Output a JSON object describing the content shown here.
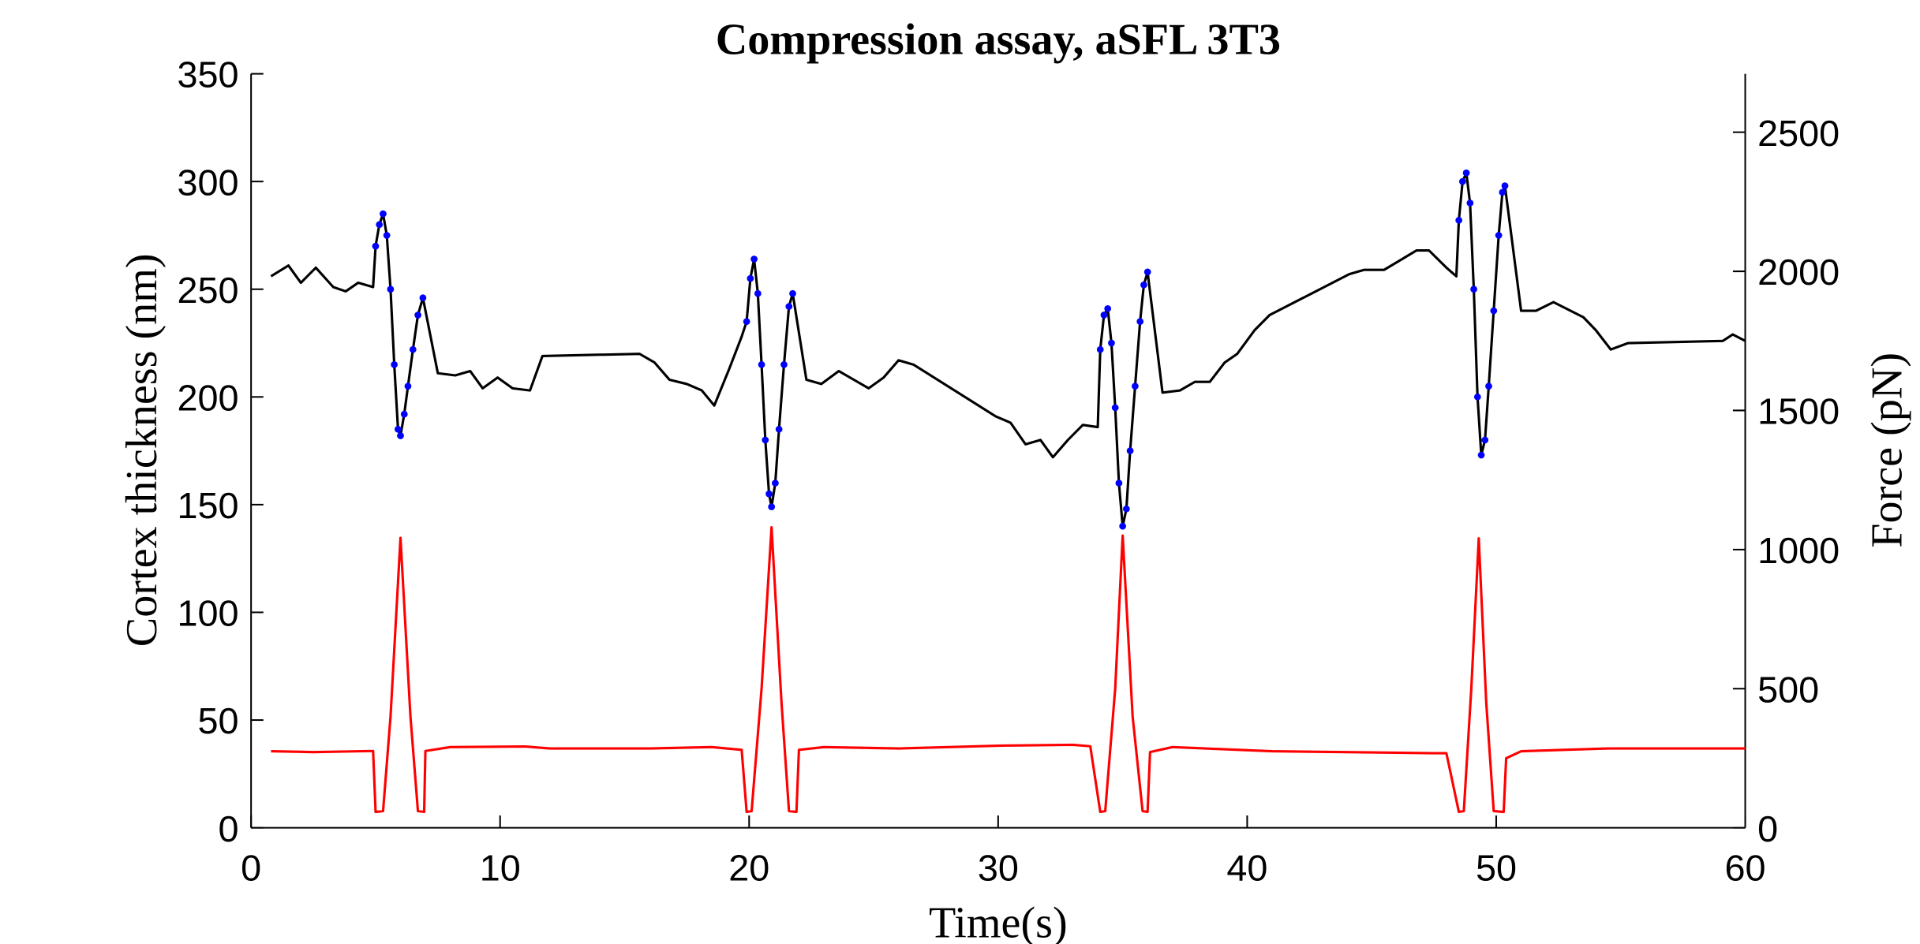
{
  "chart_data": {
    "type": "line",
    "title": "Compression assay, aSFL 3T3",
    "xlabel": "Time(s)",
    "ylabel": "Cortex thickness (nm)",
    "y2label": "Force (pN)",
    "xlim": [
      0,
      60
    ],
    "xticks": [
      0,
      10,
      20,
      30,
      40,
      50,
      60
    ],
    "ylim": [
      0,
      350
    ],
    "yticks": [
      0,
      50,
      100,
      150,
      200,
      250,
      300,
      350
    ],
    "y2lim": [
      0,
      2710
    ],
    "y2ticks": [
      0,
      500,
      1000,
      1500,
      2000,
      2500
    ],
    "series": [
      {
        "color": "#000000",
        "marker": false,
        "axis": "y",
        "x": [
          0.8,
          1.5,
          2.0,
          2.6,
          3.3,
          3.8,
          4.3,
          4.9,
          5.0,
          5.15,
          5.3,
          5.45,
          5.6,
          5.75,
          5.9,
          6.0,
          6.15,
          6.3,
          6.5,
          6.7,
          6.9,
          7.5,
          8.2,
          8.8,
          9.3,
          9.9,
          10.5,
          11.2,
          11.7,
          15.6,
          16.2,
          16.8,
          17.5,
          18.1,
          18.6,
          19.2,
          19.7,
          19.9,
          20.05,
          20.2,
          20.35,
          20.5,
          20.65,
          20.8,
          20.9,
          21.05,
          21.2,
          21.4,
          21.6,
          21.75,
          22.3,
          22.9,
          23.6,
          24.2,
          24.8,
          25.4,
          26.0,
          26.6,
          29.9,
          30.5,
          31.1,
          31.7,
          32.2,
          32.8,
          33.4,
          34.0,
          34.1,
          34.25,
          34.4,
          34.55,
          34.7,
          34.85,
          35.0,
          35.15,
          35.3,
          35.5,
          35.7,
          35.85,
          36.0,
          36.6,
          37.3,
          37.9,
          38.5,
          39.1,
          39.6,
          40.3,
          40.9,
          44.1,
          44.7,
          45.5,
          46.8,
          47.3,
          48.0,
          48.4,
          48.5,
          48.65,
          48.8,
          48.95,
          49.1,
          49.25,
          49.4,
          49.55,
          49.7,
          49.9,
          50.1,
          50.25,
          50.35,
          51.0,
          51.6,
          52.3,
          53.5,
          54.0,
          54.6,
          55.3,
          59.1,
          59.5,
          60.0
        ],
        "values": [
          256,
          261,
          253,
          260,
          251,
          249,
          253,
          251,
          270,
          280,
          285,
          275,
          250,
          215,
          185,
          182,
          192,
          205,
          222,
          238,
          246,
          211,
          210,
          212,
          204,
          209,
          204,
          203,
          219,
          220,
          216,
          208,
          206,
          203,
          196,
          213,
          228,
          235,
          255,
          264,
          248,
          215,
          180,
          155,
          149,
          160,
          185,
          215,
          242,
          248,
          208,
          206,
          212,
          208,
          204,
          209,
          217,
          215,
          191,
          188,
          178,
          180,
          172,
          180,
          187,
          186,
          222,
          238,
          241,
          225,
          195,
          160,
          140,
          148,
          175,
          205,
          235,
          252,
          258,
          202,
          203,
          207,
          207,
          216,
          220,
          231,
          238,
          257,
          259,
          259,
          268,
          268,
          260,
          256,
          282,
          300,
          304,
          290,
          250,
          200,
          173,
          180,
          205,
          240,
          275,
          295,
          298,
          240,
          240,
          244,
          237,
          231,
          222,
          225,
          226,
          229,
          226
        ]
      },
      {
        "color": "#0000ff",
        "marker": true,
        "axis": "y",
        "x": [
          5.0,
          5.15,
          5.3,
          5.45,
          5.6,
          5.75,
          5.9,
          6.0,
          6.15,
          6.3,
          6.5,
          6.7,
          6.9,
          19.9,
          20.05,
          20.2,
          20.35,
          20.5,
          20.65,
          20.8,
          20.9,
          21.05,
          21.2,
          21.4,
          21.6,
          21.75,
          34.1,
          34.25,
          34.4,
          34.55,
          34.7,
          34.85,
          35.0,
          35.15,
          35.3,
          35.5,
          35.7,
          35.85,
          36.0,
          48.5,
          48.65,
          48.8,
          48.95,
          49.1,
          49.25,
          49.4,
          49.55,
          49.7,
          49.9,
          50.1,
          50.25,
          50.35
        ],
        "values": [
          270,
          280,
          285,
          275,
          250,
          215,
          185,
          182,
          192,
          205,
          222,
          238,
          246,
          235,
          255,
          264,
          248,
          215,
          180,
          155,
          149,
          160,
          185,
          215,
          242,
          248,
          222,
          238,
          241,
          225,
          195,
          160,
          140,
          148,
          175,
          205,
          235,
          252,
          258,
          282,
          300,
          304,
          290,
          250,
          200,
          173,
          180,
          205,
          240,
          275,
          295,
          298
        ]
      },
      {
        "color": "#ff0000",
        "marker": false,
        "axis": "y2",
        "x": [
          0.8,
          2.5,
          4.9,
          5.0,
          5.3,
          5.6,
          6.0,
          6.4,
          6.7,
          6.95,
          7.0,
          8.0,
          11.0,
          12.0,
          16.0,
          18.5,
          19.7,
          19.9,
          20.1,
          20.5,
          20.9,
          21.3,
          21.6,
          21.9,
          22.0,
          23.0,
          26.0,
          30.0,
          33.0,
          33.7,
          34.1,
          34.3,
          34.7,
          35.0,
          35.4,
          35.8,
          36.0,
          36.1,
          37.0,
          41.0,
          47.5,
          48.0,
          48.5,
          48.7,
          49.0,
          49.3,
          49.6,
          49.9,
          50.3,
          50.4,
          51.0,
          54.5,
          60.0
        ],
        "values": [
          275,
          272,
          276,
          57,
          60,
          400,
          1042,
          400,
          60,
          57,
          276,
          290,
          292,
          285,
          285,
          290,
          280,
          57,
          60,
          500,
          1080,
          450,
          60,
          57,
          280,
          290,
          285,
          295,
          298,
          293,
          57,
          60,
          500,
          1050,
          400,
          60,
          57,
          272,
          290,
          275,
          268,
          268,
          57,
          60,
          500,
          1040,
          450,
          60,
          57,
          250,
          275,
          285,
          285
        ]
      }
    ]
  }
}
